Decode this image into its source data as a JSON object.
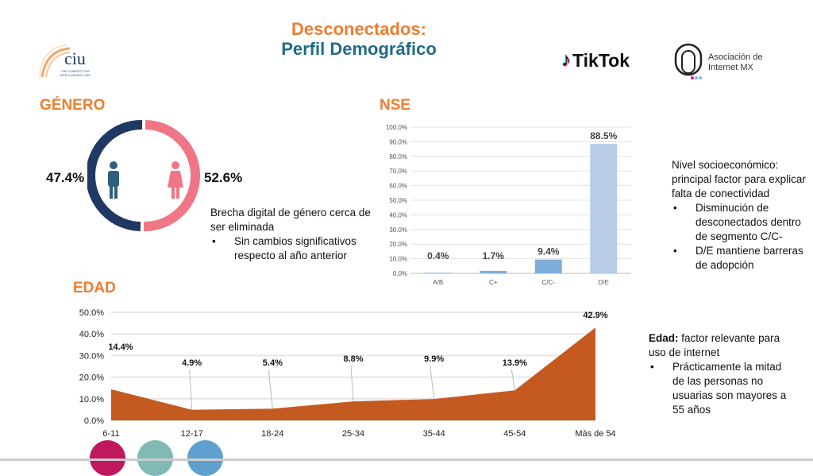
{
  "header": {
    "title": "Desconectados:",
    "subtitle": "Perfil Demográfico"
  },
  "logos": {
    "ciu": {
      "name": "ciu",
      "tagline1": "THE COMPETITIVE",
      "tagline2": "INTELLIGENCE UNIT"
    },
    "tiktok": "TikTok",
    "aimx": {
      "line1": "Asociación de",
      "line2": "Internet MX"
    }
  },
  "genero": {
    "title": "GÉNERO",
    "male_pct": "47.4%",
    "female_pct": "52.6%",
    "male_value": 47.4,
    "female_value": 52.6,
    "colors": {
      "male": "#203864",
      "female": "#F07585"
    },
    "note": "Brecha digital de género cerca de ser eliminada",
    "bullets": [
      "Sin cambios significativos respecto al año anterior"
    ]
  },
  "nse": {
    "title": "NSE",
    "note": "Nivel socioeconómico: principal factor para explicar falta de conectividad",
    "bullets": [
      "Disminución de desconectados dentro de segmento C/C-",
      "D/E mantiene barreras de adopción"
    ]
  },
  "edad": {
    "title": "EDAD",
    "note_bold": "Edad:",
    "note": " factor relevante para uso de internet",
    "bullets": [
      "Prácticamente la mitad de las personas no usuarias son mayores a 55 años"
    ]
  },
  "chart_data": [
    {
      "type": "bar",
      "title": "NSE",
      "categories": [
        "A/B",
        "C+",
        "C/C-",
        "D/E"
      ],
      "values": [
        0.4,
        1.7,
        9.4,
        88.5
      ],
      "labels": [
        "0.4%",
        "1.7%",
        "9.4%",
        "88.5%"
      ],
      "colors": [
        "#7FAEDB",
        "#7FAEDB",
        "#7FAEDB",
        "#B7CDE8"
      ],
      "ylim": [
        0,
        100
      ],
      "yticks": [
        "0.0%",
        "10.0%",
        "20.0%",
        "30.0%",
        "40.0%",
        "50.0%",
        "60.0%",
        "70.0%",
        "80.0%",
        "90.0%",
        "100.0%"
      ],
      "grid": true
    },
    {
      "type": "area",
      "title": "EDAD",
      "categories": [
        "6-11",
        "12-17",
        "18-24",
        "25-34",
        "35-44",
        "45-54",
        "Más de 54"
      ],
      "values": [
        14.4,
        4.9,
        5.4,
        8.8,
        9.9,
        13.9,
        42.9
      ],
      "labels": [
        "14.4%",
        "4.9%",
        "5.4%",
        "8.8%",
        "9.9%",
        "13.9%",
        "42.9%"
      ],
      "color": "#C55A20",
      "ylim": [
        0,
        50
      ],
      "yticks": [
        "0.0%",
        "10.0%",
        "20.0%",
        "30.0%",
        "40.0%",
        "50.0%"
      ],
      "grid": true
    }
  ],
  "footer_dots": [
    "#C0175D",
    "#7FBAB5",
    "#5FA0CF"
  ]
}
